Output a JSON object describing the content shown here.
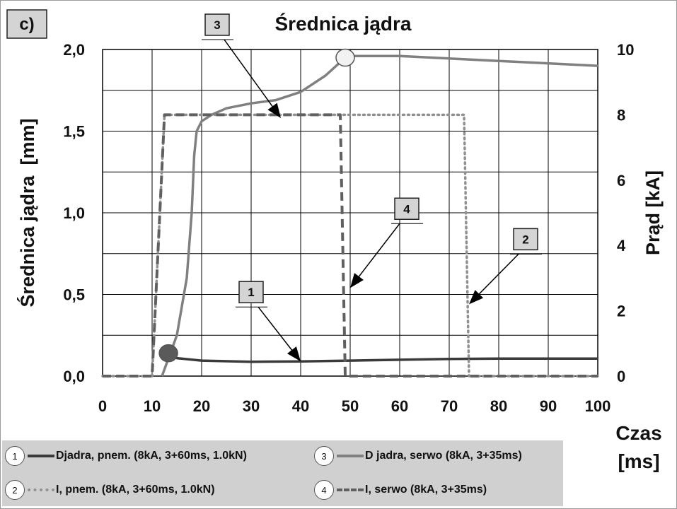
{
  "panel_label": "c)",
  "chart_data": {
    "type": "line",
    "title": "Średnica jądra",
    "xlabel": "Czas [ms]",
    "ylabel": "Średnica jądra  [mm]",
    "y2label": "Prąd [kA]",
    "xlim": [
      0,
      100
    ],
    "ylim": [
      0,
      2.0
    ],
    "y2lim": [
      0,
      10
    ],
    "x_ticks": [
      "0",
      "10",
      "20",
      "30",
      "40",
      "50",
      "60",
      "70",
      "80",
      "90",
      "100"
    ],
    "y_ticks": [
      "0,0",
      "0,5",
      "1,0",
      "1,5",
      "2,0"
    ],
    "y2_ticks": [
      "0",
      "2",
      "4",
      "6",
      "8",
      "10"
    ],
    "grid": true,
    "series": [
      {
        "name": "Djadra, pnem. (8kA, 3+60ms, 1.0kN)",
        "number": "1",
        "axis": "left",
        "style": "solid",
        "color": "#3a3a3a",
        "x": [
          13.3,
          15,
          20,
          30,
          40,
          50,
          60,
          70,
          80,
          100
        ],
        "y": [
          0.14,
          0.11,
          0.095,
          0.088,
          0.09,
          0.095,
          0.1,
          0.105,
          0.107,
          0.107
        ]
      },
      {
        "name": "I, pnem. (8kA, 3+60ms, 1.0kN)",
        "number": "2",
        "axis": "right",
        "style": "dotted",
        "color": "#909090",
        "x": [
          0,
          10,
          12.5,
          73,
          74,
          100
        ],
        "y": [
          0,
          0,
          8,
          8,
          0,
          0
        ]
      },
      {
        "name": "D jadra, serwo (8kA, 3+35ms)",
        "number": "3",
        "axis": "left",
        "style": "solid",
        "color": "#808080",
        "x": [
          12,
          15,
          17,
          18,
          18.5,
          19,
          20,
          22,
          25,
          30,
          35,
          40,
          45,
          49,
          50,
          60,
          80,
          100
        ],
        "y": [
          0,
          0.25,
          0.6,
          1.0,
          1.35,
          1.5,
          1.56,
          1.6,
          1.64,
          1.67,
          1.69,
          1.74,
          1.84,
          1.95,
          1.96,
          1.96,
          1.93,
          1.9
        ]
      },
      {
        "name": "I, serwo (8kA, 3+35ms)",
        "number": "4",
        "axis": "right",
        "style": "dashed",
        "color": "#606060",
        "x": [
          0,
          10,
          12.5,
          48,
          49,
          100
        ],
        "y": [
          0,
          0,
          8,
          8,
          0,
          0
        ]
      }
    ],
    "markers": [
      {
        "x": 13.3,
        "y": 0.14,
        "fill": "#5a5a5a"
      },
      {
        "x": 49,
        "y": 1.95,
        "fill": "#f2f2f2"
      }
    ],
    "callouts": [
      {
        "label": "3",
        "tx": 36,
        "ty": 1.58,
        "y_axis": "left"
      },
      {
        "label": "4",
        "tx": 50,
        "ty": 2.7,
        "y_axis": "right"
      },
      {
        "label": "2",
        "tx": 74,
        "ty": 2.2,
        "y_axis": "right"
      },
      {
        "label": "1",
        "tx": 40,
        "ty": 0.09,
        "y_axis": "left"
      }
    ]
  }
}
